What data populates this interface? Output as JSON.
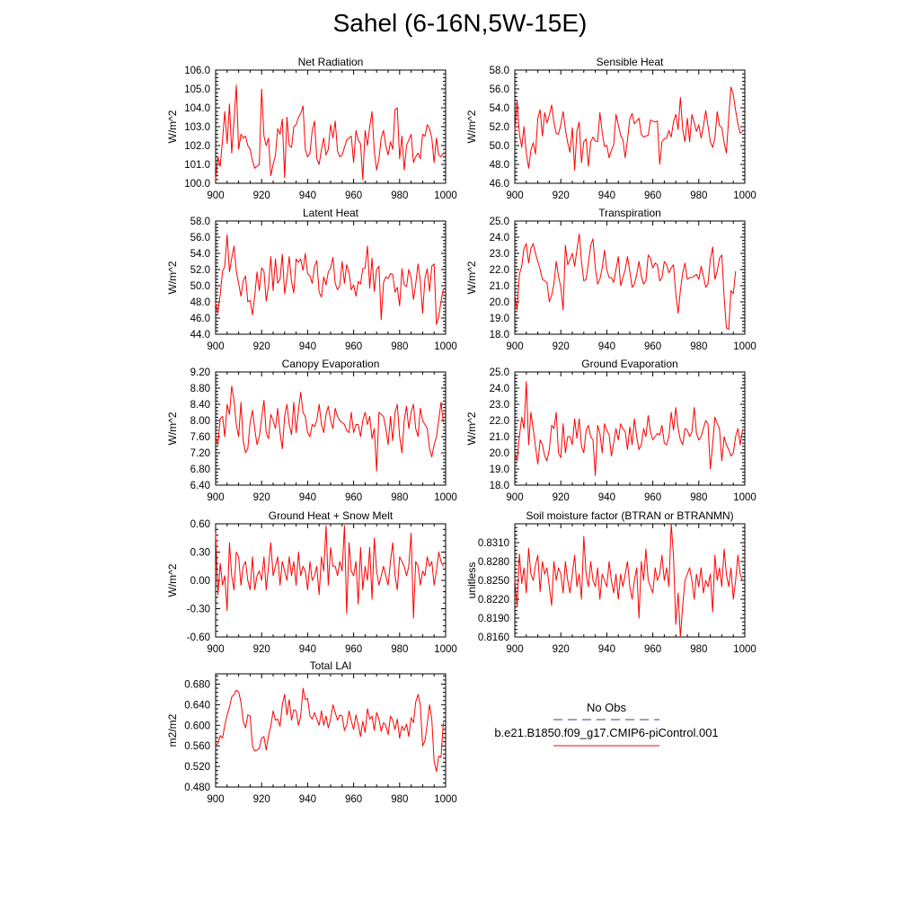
{
  "title": "Sahel (6-16N,5W-15E)",
  "legend": {
    "obs_label": "No Obs",
    "obs_color": "#3b3b9b",
    "case_label": "b.e21.B1850.f09_g17.CMIP6-piControl.001",
    "case_color": "#ff0000"
  },
  "chart_data": [
    {
      "type": "line",
      "title": "Net Radiation",
      "ylabel": "W/m^2",
      "xlim": [
        900,
        1000
      ],
      "ylim": [
        100.0,
        106.0
      ],
      "xticks": [
        900,
        920,
        940,
        960,
        980,
        1000
      ],
      "yticks": [
        "100.0",
        "101.0",
        "102.0",
        "103.0",
        "104.0",
        "105.0",
        "106.0"
      ],
      "x0": 900,
      "dx": 1,
      "color": "#ff0000",
      "values": [
        100.2,
        101.4,
        100.9,
        102.3,
        103.8,
        102.1,
        104.2,
        101.6,
        103.3,
        105.2,
        101.8,
        102.6,
        102.4,
        102.5,
        102.0,
        101.8,
        101.2,
        100.8,
        100.9,
        101.0,
        105.0,
        102.5,
        102.0,
        102.4,
        100.4,
        101.0,
        101.5,
        102.9,
        102.6,
        103.4,
        100.3,
        103.5,
        102.0,
        101.9,
        103.0,
        103.1,
        103.5,
        103.7,
        104.1,
        101.8,
        101.4,
        101.6,
        102.8,
        103.3,
        101.3,
        101.0,
        101.8,
        102.4,
        101.5,
        101.8,
        103.1,
        102.4,
        103.3,
        101.7,
        101.4,
        101.5,
        101.9,
        102.3,
        102.4,
        102.5,
        101.1,
        102.8,
        102.3,
        102.1,
        100.2,
        102.8,
        102.0,
        103.0,
        103.8,
        101.7,
        100.7,
        101.3,
        102.4,
        102.8,
        102.0,
        101.5,
        102.2,
        101.8,
        103.9,
        104.0,
        101.3,
        102.5,
        100.7,
        102.0,
        102.3,
        102.6,
        101.1,
        101.4,
        101.6,
        101.3,
        102.6,
        102.5,
        103.1,
        102.9,
        102.4,
        101.1,
        102.4,
        101.5,
        101.4,
        101.6
      ]
    },
    {
      "type": "line",
      "title": "Sensible Heat",
      "ylabel": "W/m^2",
      "xlim": [
        900,
        1000
      ],
      "ylim": [
        46.0,
        58.0
      ],
      "xticks": [
        900,
        920,
        940,
        960,
        980,
        1000
      ],
      "yticks": [
        "46.0",
        "48.0",
        "50.0",
        "52.0",
        "54.0",
        "56.0",
        "58.0"
      ],
      "x0": 900,
      "dx": 1,
      "color": "#ff0000",
      "values": [
        51.5,
        54.8,
        51.2,
        49.8,
        52.0,
        49.2,
        47.6,
        49.5,
        50.3,
        49.1,
        52.9,
        53.8,
        51.0,
        53.5,
        52.4,
        53.2,
        54.3,
        52.5,
        51.3,
        51.2,
        52.2,
        53.6,
        51.7,
        50.3,
        49.3,
        51.9,
        47.4,
        51.5,
        52.5,
        48.2,
        50.4,
        50.7,
        47.8,
        50.4,
        50.9,
        50.5,
        50.4,
        53.5,
        51.4,
        49.9,
        50.0,
        48.7,
        49.5,
        50.1,
        53.3,
        52.2,
        51.1,
        50.6,
        48.7,
        50.6,
        52.8,
        53.4,
        52.3,
        52.6,
        52.9,
        51.2,
        50.9,
        51.0,
        51.1,
        52.7,
        52.6,
        52.5,
        52.6,
        48.0,
        50.4,
        50.7,
        50.8,
        51.6,
        50.9,
        52.5,
        53.3,
        51.7,
        55.1,
        51.7,
        50.4,
        52.9,
        50.4,
        53.3,
        52.4,
        51.5,
        52.2,
        50.8,
        52.0,
        53.7,
        52.1,
        50.4,
        49.8,
        50.8,
        53.6,
        52.1,
        51.9,
        50.3,
        49.2,
        53.0,
        56.2,
        55.4,
        53.7,
        52.3,
        51.3,
        51.5
      ]
    },
    {
      "type": "line",
      "title": "Latent Heat",
      "ylabel": "W/m^2",
      "xlim": [
        900,
        1000
      ],
      "ylim": [
        44.0,
        58.0
      ],
      "xticks": [
        900,
        920,
        940,
        960,
        980,
        1000
      ],
      "yticks": [
        "44.0",
        "46.0",
        "48.0",
        "50.0",
        "52.0",
        "54.0",
        "56.0",
        "58.0"
      ],
      "x0": 900,
      "dx": 1,
      "color": "#ff0000",
      "values": [
        47.8,
        46.6,
        48.9,
        51.8,
        52.4,
        56.3,
        51.7,
        53.4,
        54.9,
        51.8,
        50.3,
        48.7,
        50.6,
        51.2,
        48.0,
        48.2,
        46.4,
        48.7,
        51.7,
        49.4,
        52.2,
        51.8,
        48.1,
        50.0,
        53.6,
        49.4,
        53.3,
        50.3,
        50.8,
        53.9,
        49.0,
        51.0,
        53.6,
        50.5,
        49.1,
        53.3,
        52.9,
        53.3,
        51.9,
        54.0,
        51.5,
        51.2,
        50.3,
        52.4,
        53.1,
        49.2,
        48.6,
        51.1,
        50.1,
        51.7,
        52.2,
        53.5,
        50.3,
        49.5,
        50.0,
        53.0,
        50.3,
        52.6,
        51.6,
        49.5,
        50.1,
        48.7,
        50.5,
        50.2,
        52.1,
        52.2,
        54.9,
        49.7,
        53.4,
        49.3,
        52.0,
        52.4,
        45.8,
        50.4,
        51.1,
        50.9,
        51.5,
        51.4,
        49.2,
        49.8,
        47.5,
        52.1,
        50.1,
        49.9,
        52.0,
        51.0,
        48.3,
        50.2,
        52.7,
        50.6,
        46.6,
        50.9,
        52.1,
        49.3,
        52.4,
        52.7,
        45.2,
        46.1,
        48.1,
        49.6
      ]
    },
    {
      "type": "line",
      "title": "Transpiration",
      "ylabel": "W/m^2",
      "xlim": [
        900,
        1000
      ],
      "ylim": [
        18.0,
        25.0
      ],
      "xticks": [
        900,
        920,
        940,
        960,
        980,
        1000
      ],
      "yticks": [
        "18.0",
        "19.0",
        "20.0",
        "21.0",
        "22.0",
        "23.0",
        "24.0",
        "25.0"
      ],
      "x0": 900,
      "dx": 1,
      "color": "#ff0000",
      "values": [
        20.4,
        19.5,
        21.7,
        22.2,
        23.3,
        23.6,
        22.4,
        23.3,
        23.6,
        23.0,
        22.5,
        22.0,
        21.4,
        21.3,
        21.2,
        20.0,
        20.4,
        21.1,
        22.5,
        21.6,
        20.9,
        19.5,
        23.5,
        22.3,
        22.6,
        23.0,
        22.2,
        23.2,
        24.2,
        22.5,
        21.3,
        21.4,
        22.4,
        23.5,
        23.9,
        22.1,
        21.1,
        21.4,
        22.1,
        23.2,
        22.0,
        21.5,
        21.5,
        21.2,
        22.0,
        22.8,
        21.0,
        21.5,
        22.0,
        22.8,
        21.9,
        20.9,
        21.1,
        21.7,
        22.5,
        21.6,
        21.1,
        21.3,
        22.9,
        22.7,
        22.1,
        22.4,
        22.3,
        21.3,
        21.5,
        22.5,
        22.3,
        21.8,
        22.1,
        22.3,
        20.5,
        19.3,
        20.7,
        21.8,
        22.4,
        21.4,
        21.5,
        21.5,
        21.6,
        21.7,
        21.4,
        22.2,
        21.6,
        20.9,
        21.1,
        22.6,
        23.4,
        21.4,
        21.9,
        22.7,
        22.9,
        20.3,
        18.4,
        18.3,
        20.7,
        20.5,
        21.9
      ]
    },
    {
      "type": "line",
      "title": "Canopy Evaporation",
      "ylabel": "W/m^2",
      "xlim": [
        900,
        1000
      ],
      "ylim": [
        6.4,
        9.2
      ],
      "xticks": [
        900,
        920,
        940,
        960,
        980,
        1000
      ],
      "yticks": [
        "6.40",
        "6.80",
        "7.20",
        "7.60",
        "8.00",
        "8.40",
        "8.80",
        "9.20"
      ],
      "x0": 900,
      "dx": 1,
      "color": "#ff0000",
      "values": [
        7.6,
        7.4,
        8.05,
        8.1,
        7.6,
        8.4,
        8.15,
        8.85,
        8.5,
        7.9,
        7.6,
        8.45,
        7.5,
        7.2,
        7.3,
        7.95,
        8.25,
        7.8,
        7.4,
        7.6,
        8.05,
        8.5,
        7.7,
        7.55,
        8.15,
        8.0,
        7.8,
        8.3,
        7.7,
        7.3,
        8.1,
        8.4,
        7.9,
        7.65,
        8.45,
        7.7,
        8.25,
        8.7,
        8.2,
        8.1,
        7.7,
        7.6,
        7.9,
        7.85,
        8.0,
        8.4,
        7.9,
        7.7,
        8.15,
        8.35,
        8.0,
        7.8,
        8.3,
        8.1,
        8.0,
        7.95,
        7.9,
        7.75,
        7.7,
        8.2,
        7.7,
        7.9,
        7.9,
        7.6,
        8.0,
        8.2,
        7.9,
        8.1,
        7.55,
        7.8,
        6.75,
        8.2,
        8.15,
        8.1,
        7.8,
        7.4,
        8.1,
        7.5,
        8.2,
        8.4,
        7.6,
        7.2,
        8.0,
        8.35,
        7.8,
        8.2,
        8.4,
        7.8,
        7.6,
        8.3,
        8.0,
        7.9,
        7.8,
        7.3,
        7.1,
        7.4,
        7.6,
        8.0,
        8.45,
        7.95
      ]
    },
    {
      "type": "line",
      "title": "Ground Evaporation",
      "ylabel": "W/m^2",
      "xlim": [
        900,
        1000
      ],
      "ylim": [
        18.0,
        25.0
      ],
      "xticks": [
        900,
        920,
        940,
        960,
        980,
        1000
      ],
      "yticks": [
        "18.0",
        "19.0",
        "20.0",
        "21.0",
        "22.0",
        "23.0",
        "24.0",
        "25.0"
      ],
      "x0": 900,
      "dx": 1,
      "color": "#ff0000",
      "values": [
        20.0,
        19.5,
        21.0,
        22.2,
        21.5,
        24.4,
        20.5,
        22.5,
        21.5,
        20.4,
        19.3,
        20.8,
        20.5,
        19.8,
        19.5,
        20.2,
        21.7,
        21.5,
        22.5,
        20.0,
        19.7,
        21.8,
        20.0,
        21.0,
        21.0,
        20.5,
        22.1,
        20.9,
        22.1,
        20.4,
        20.0,
        21.4,
        21.7,
        21.0,
        20.8,
        18.6,
        21.7,
        21.2,
        20.0,
        21.8,
        21.4,
        21.1,
        19.8,
        20.6,
        21.5,
        20.8,
        21.8,
        21.5,
        21.3,
        20.2,
        21.6,
        20.5,
        22.1,
        21.0,
        20.2,
        20.5,
        21.5,
        21.0,
        22.3,
        21.3,
        20.8,
        21.0,
        21.2,
        21.1,
        21.7,
        20.6,
        20.5,
        21.0,
        22.5,
        21.4,
        22.8,
        21.5,
        20.8,
        20.5,
        21.5,
        21.4,
        21.0,
        21.3,
        22.8,
        21.2,
        20.8,
        21.0,
        21.5,
        22.0,
        21.8,
        19.0,
        20.5,
        22.2,
        21.8,
        21.5,
        19.5,
        21.0,
        20.5,
        20.2,
        19.8,
        20.0,
        21.0,
        21.5,
        20.5,
        21.4
      ]
    },
    {
      "type": "line",
      "title": "Ground Heat + Snow Melt",
      "ylabel": "W/m^2",
      "xlim": [
        900,
        1000
      ],
      "ylim": [
        -0.6,
        0.6
      ],
      "xticks": [
        900,
        920,
        940,
        960,
        980,
        1000
      ],
      "yticks": [
        "-0.60",
        "-0.30",
        "0.00",
        "0.30",
        "0.60"
      ],
      "x0": 900,
      "dx": 1,
      "color": "#ff0000",
      "values": [
        0.5,
        -0.15,
        0.18,
        -0.05,
        0.05,
        -0.32,
        0.4,
        0.05,
        -0.1,
        0.3,
        0.25,
        -0.05,
        0.15,
        0.2,
        0.0,
        -0.1,
        0.25,
        -0.1,
        0.05,
        0.1,
        0.0,
        0.25,
        -0.1,
        0.15,
        0.4,
        0.05,
        0.15,
        0.25,
        -0.05,
        0.2,
        0.1,
        0.0,
        0.25,
        0.05,
        0.2,
        -0.05,
        0.3,
        0.05,
        0.15,
        0.1,
        -0.1,
        0.2,
        0.0,
        0.05,
        0.15,
        -0.15,
        0.25,
        0.1,
        0.58,
        -0.05,
        0.35,
        0.15,
        0.15,
        0.05,
        0.2,
        0.1,
        0.58,
        -0.35,
        0.4,
        0.1,
        0.05,
        0.2,
        -0.25,
        0.35,
        -0.1,
        0.15,
        0.0,
        0.35,
        -0.2,
        0.45,
        0.1,
        -0.05,
        0.05,
        0.15,
        0.05,
        -0.05,
        0.2,
        0.4,
        0.05,
        -0.1,
        0.25,
        0.2,
        0.15,
        0.05,
        0.15,
        0.5,
        -0.4,
        0.2,
        0.15,
        -0.05,
        0.1,
        0.05,
        0.25,
        0.15,
        0.2,
        -0.05,
        0.1,
        0.3,
        0.2,
        0.15
      ]
    },
    {
      "type": "line",
      "title": "Soil moisture factor (BTRAN or BTRANMN)",
      "ylabel": "unitless",
      "xlim": [
        900,
        1000
      ],
      "ylim": [
        0.816,
        0.834
      ],
      "xticks": [
        900,
        920,
        940,
        960,
        980,
        1000
      ],
      "yticks": [
        "0.8160",
        "0.8190",
        "0.8220",
        "0.8250",
        "0.8280",
        "0.8310"
      ],
      "x0": 900,
      "dx": 1,
      "color": "#ff0000",
      "values": [
        0.8252,
        0.8208,
        0.8292,
        0.8245,
        0.827,
        0.823,
        0.8301,
        0.826,
        0.825,
        0.8274,
        0.829,
        0.8232,
        0.828,
        0.826,
        0.827,
        0.824,
        0.821,
        0.828,
        0.825,
        0.827,
        0.826,
        0.823,
        0.828,
        0.825,
        0.823,
        0.826,
        0.829,
        0.824,
        0.826,
        0.822,
        0.832,
        0.826,
        0.824,
        0.828,
        0.825,
        0.824,
        0.827,
        0.822,
        0.826,
        0.825,
        0.824,
        0.828,
        0.825,
        0.823,
        0.826,
        0.822,
        0.826,
        0.824,
        0.826,
        0.828,
        0.824,
        0.822,
        0.825,
        0.827,
        0.819,
        0.828,
        0.825,
        0.83,
        0.825,
        0.824,
        0.823,
        0.827,
        0.825,
        0.826,
        0.829,
        0.825,
        0.827,
        0.824,
        0.834,
        0.829,
        0.818,
        0.823,
        0.816,
        0.821,
        0.825,
        0.826,
        0.827,
        0.825,
        0.822,
        0.826,
        0.824,
        0.827,
        0.823,
        0.825,
        0.824,
        0.826,
        0.82,
        0.829,
        0.825,
        0.827,
        0.824,
        0.83,
        0.826,
        0.824,
        0.827,
        0.822,
        0.825,
        0.829,
        0.826,
        0.825
      ]
    },
    {
      "type": "line",
      "title": "Total LAI",
      "ylabel": "m2/m2",
      "xlim": [
        900,
        1000
      ],
      "ylim": [
        0.48,
        0.7
      ],
      "xticks": [
        900,
        920,
        940,
        960,
        980,
        1000
      ],
      "yticks": [
        "0.480",
        "0.520",
        "0.560",
        "0.600",
        "0.640",
        "0.680"
      ],
      "x0": 900,
      "dx": 1,
      "color": "#ff0000",
      "values": [
        0.56,
        0.565,
        0.58,
        0.575,
        0.6,
        0.62,
        0.635,
        0.655,
        0.66,
        0.668,
        0.665,
        0.645,
        0.608,
        0.595,
        0.62,
        0.618,
        0.56,
        0.55,
        0.552,
        0.555,
        0.575,
        0.578,
        0.552,
        0.58,
        0.598,
        0.628,
        0.61,
        0.612,
        0.598,
        0.64,
        0.66,
        0.62,
        0.65,
        0.61,
        0.63,
        0.628,
        0.6,
        0.618,
        0.672,
        0.65,
        0.652,
        0.618,
        0.612,
        0.625,
        0.612,
        0.6,
        0.628,
        0.6,
        0.618,
        0.595,
        0.612,
        0.64,
        0.625,
        0.61,
        0.62,
        0.618,
        0.59,
        0.6,
        0.628,
        0.608,
        0.592,
        0.62,
        0.602,
        0.578,
        0.608,
        0.586,
        0.632,
        0.612,
        0.618,
        0.59,
        0.625,
        0.612,
        0.588,
        0.605,
        0.6,
        0.582,
        0.618,
        0.61,
        0.592,
        0.612,
        0.575,
        0.598,
        0.59,
        0.602,
        0.578,
        0.615,
        0.605,
        0.645,
        0.66,
        0.64,
        0.56,
        0.57,
        0.602,
        0.64,
        0.612,
        0.53,
        0.51,
        0.54,
        0.538,
        0.605
      ]
    }
  ]
}
